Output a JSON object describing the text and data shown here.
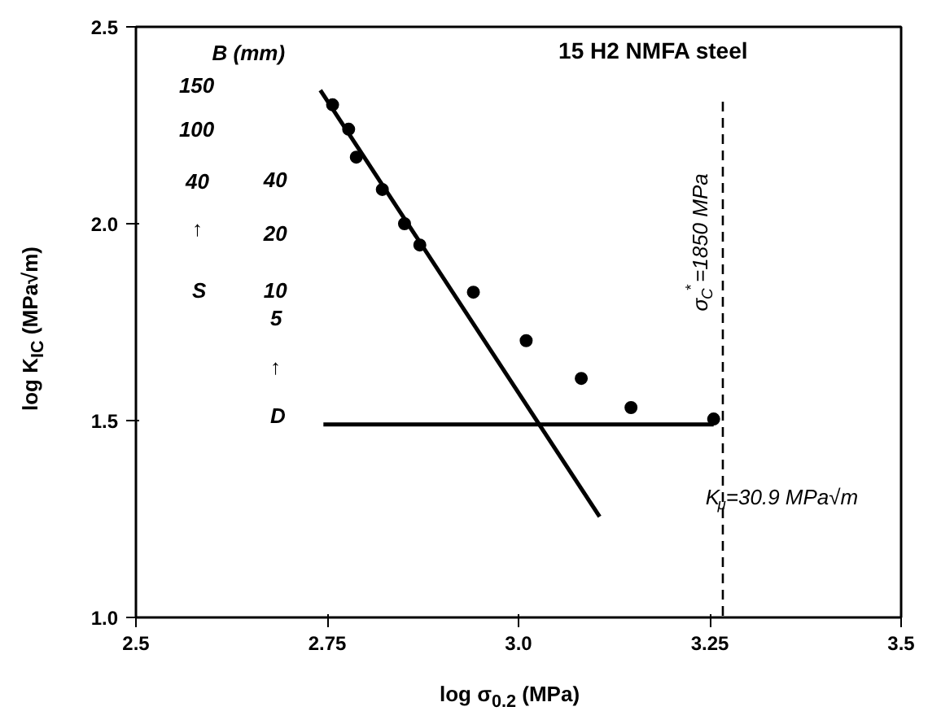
{
  "chart_data": {
    "type": "scatter",
    "xlabel": "log σ$_{0.2}$ (MPa)",
    "ylabel": "log K$_{IC}$ (MPa√m)",
    "xlim": [
      2.5,
      3.5
    ],
    "ylim": [
      1.0,
      2.5
    ],
    "xticks": [
      2.5,
      2.75,
      {
        "value": 3.0,
        "label": "3.0"
      },
      3.25,
      3.5
    ],
    "yticks": [
      {
        "value": 1.0,
        "label": "1.0"
      },
      1.5,
      {
        "value": 2.0,
        "label": "2.0"
      },
      2.5
    ],
    "grid": false,
    "series": [
      {
        "marker": "circle",
        "color": "#000000",
        "x": [
          2.757,
          2.778,
          2.788,
          2.822,
          2.851,
          2.871,
          2.941,
          3.01,
          3.082,
          3.147,
          3.255
        ],
        "values": [
          2.302,
          2.24,
          2.169,
          2.087,
          2.0,
          1.946,
          1.826,
          1.703,
          1.607,
          1.533,
          1.504
        ]
      },
      {
        "type": "line",
        "color": "#000000",
        "line_style": "solid",
        "x": [
          2.741,
          3.106
        ],
        "values": [
          2.339,
          1.256
        ]
      },
      {
        "type": "line",
        "color": "#000000",
        "line_style": "solid",
        "x": [
          2.745,
          3.255
        ],
        "values": [
          1.49,
          1.49
        ]
      },
      {
        "type": "line",
        "color": "#000000",
        "line_style": "dashed",
        "x": [
          3.267,
          3.267
        ],
        "values": [
          2.31,
          1.0
        ]
      }
    ],
    "annotations": [
      "B (mm)",
      "150",
      "100",
      "40",
      "↑",
      "S",
      "40",
      "20",
      "10",
      "5",
      "↑",
      "D",
      "15 H2 NMFA steel",
      "K$_{μ}$=30.9 MPa√m",
      {
        "text": "σ$_{C}$$^{*}$=1850 MPa",
        "x": 3.267,
        "y": 1.95
      }
    ]
  }
}
